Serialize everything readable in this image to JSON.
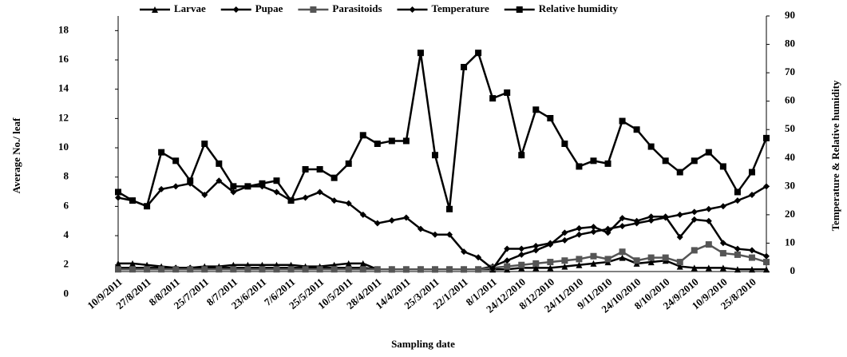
{
  "chart_data": {
    "type": "line",
    "x_label": "Sampling date",
    "y_label": "Average No./ leaf",
    "y2_label": "Temperature & Relative humidity",
    "categories": [
      "10/9/2011",
      null,
      "27/8/2011",
      null,
      "8/8/2011",
      null,
      "25/7/2011",
      null,
      "8/7/2011",
      null,
      "23/6/2011",
      null,
      "7/6/2011",
      null,
      "25/5/2011",
      null,
      "10/5/2011",
      null,
      "28/4/2011",
      null,
      "14/4/2011",
      null,
      "25/3/2011",
      null,
      "22/1/2011",
      null,
      "8/1/2011",
      null,
      "24/12/2010",
      null,
      "8/12/2010",
      null,
      "24/11/2010",
      null,
      "9/11/2010",
      null,
      "24/10/2010",
      null,
      "8/10/2010",
      null,
      "24/9/2010",
      null,
      "10/9/2010",
      null,
      "25/8/2010",
      null
    ],
    "ylim": [
      1.55,
      19
    ],
    "yticks": [
      0,
      2,
      4,
      6,
      8,
      10,
      12,
      14,
      16,
      18
    ],
    "y2lim": [
      0,
      90
    ],
    "y2ticks": [
      0,
      10,
      20,
      30,
      40,
      50,
      60,
      70,
      80,
      90
    ],
    "series": [
      {
        "name": "Larvae",
        "color": "#000000",
        "marker": "triangle",
        "values": [
          2.1,
          2.1,
          2,
          1.9,
          1.8,
          1.8,
          1.9,
          1.9,
          2,
          2,
          2,
          2,
          2,
          1.9,
          1.9,
          2,
          2.1,
          2.1,
          1.7,
          1.7,
          1.7,
          1.7,
          1.7,
          1.7,
          1.7,
          1.7,
          1.7,
          1.7,
          1.8,
          1.8,
          1.8,
          1.9,
          2,
          2.1,
          2.2,
          2.5,
          2.1,
          2.2,
          2.3,
          1.9,
          1.8,
          1.8,
          1.8,
          1.7,
          1.7,
          1.7
        ]
      },
      {
        "name": "Pupae",
        "color": "#000000",
        "marker": "diamond",
        "values": [
          1.8,
          1.8,
          1.8,
          1.8,
          1.8,
          1.8,
          1.8,
          1.8,
          1.8,
          1.8,
          1.8,
          1.8,
          1.8,
          1.8,
          1.8,
          1.8,
          1.8,
          1.8,
          1.7,
          1.7,
          1.7,
          1.7,
          1.7,
          1.7,
          1.7,
          1.7,
          1.9,
          2.3,
          2.7,
          3,
          3.4,
          4.2,
          4.5,
          4.6,
          4.2,
          5.2,
          5,
          5.3,
          5.3,
          3.9,
          5.1,
          5,
          3.5,
          3.1,
          3,
          2.6
        ]
      },
      {
        "name": "Parasitoids",
        "color": "#555555",
        "marker": "square",
        "values": [
          1.7,
          1.7,
          1.7,
          1.7,
          1.7,
          1.7,
          1.7,
          1.7,
          1.7,
          1.7,
          1.7,
          1.7,
          1.7,
          1.7,
          1.7,
          1.7,
          1.7,
          1.7,
          1.7,
          1.7,
          1.7,
          1.7,
          1.7,
          1.7,
          1.7,
          1.7,
          1.8,
          1.9,
          2,
          2.1,
          2.2,
          2.3,
          2.4,
          2.6,
          2.4,
          2.9,
          2.3,
          2.5,
          2.5,
          2.2,
          3,
          3.4,
          2.8,
          2.7,
          2.5,
          2.2
        ]
      },
      {
        "name": "Temperature",
        "color": "#000000",
        "marker": "diamond",
        "axis": "y2",
        "values": [
          26,
          25,
          23,
          29,
          30,
          31,
          27,
          32,
          28,
          30,
          30,
          28,
          25,
          26,
          28,
          25,
          24,
          20,
          17,
          18,
          19,
          15,
          13,
          13,
          7,
          5,
          1,
          8,
          8,
          9,
          10,
          11,
          13,
          14,
          15,
          16,
          17,
          18,
          19,
          20,
          21,
          22,
          23,
          25,
          27,
          30
        ]
      },
      {
        "name": "Relative humidity",
        "color": "#000000",
        "marker": "square",
        "axis": "y2",
        "values": [
          28,
          25,
          23,
          42,
          39,
          32,
          45,
          38,
          30,
          30,
          31,
          32,
          25,
          36,
          36,
          33,
          38,
          48,
          45,
          46,
          46,
          77,
          41,
          22,
          72,
          77,
          61,
          63,
          41,
          57,
          54,
          45,
          37,
          39,
          38,
          53,
          50,
          44,
          39,
          35,
          39,
          42,
          37,
          28,
          35,
          47
        ]
      }
    ]
  }
}
